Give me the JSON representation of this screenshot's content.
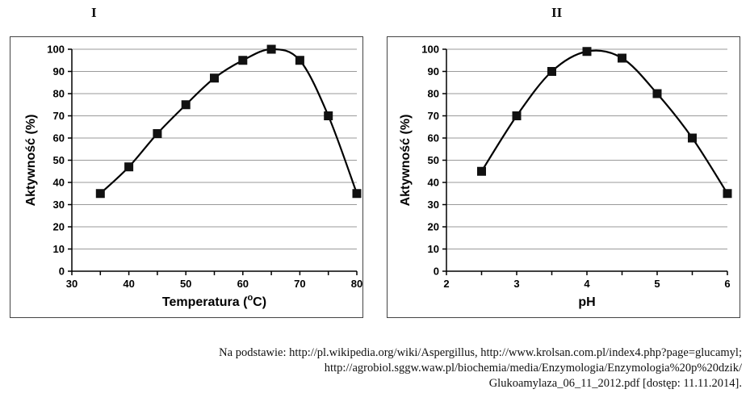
{
  "panels": [
    {
      "label": "I",
      "chart_data": {
        "type": "line",
        "title": "I",
        "xlabel": "Temperatura (",
        "xlabel_superscript": "o",
        "xlabel_unit": "C)",
        "ylabel": "Aktywność  (%)",
        "xlim": [
          30,
          80
        ],
        "ylim": [
          0,
          100
        ],
        "xticks": [
          30,
          40,
          50,
          60,
          70,
          80
        ],
        "yticks": [
          0,
          10,
          20,
          30,
          40,
          50,
          60,
          70,
          80,
          90,
          100
        ],
        "grid": "horizontal",
        "series": [
          {
            "name": "Aktywność",
            "x": [
              35,
              40,
              45,
              50,
              55,
              60,
              65,
              70,
              75,
              80
            ],
            "y": [
              35,
              47,
              62,
              75,
              87,
              95,
              100,
              95,
              70,
              35
            ]
          }
        ]
      }
    },
    {
      "label": "II",
      "chart_data": {
        "type": "line",
        "title": "II",
        "xlabel": "pH",
        "ylabel": "Aktywność  (%)",
        "xlim": [
          2,
          6
        ],
        "ylim": [
          0,
          100
        ],
        "xticks": [
          2,
          3,
          4,
          5,
          6
        ],
        "yticks": [
          0,
          10,
          20,
          30,
          40,
          50,
          60,
          70,
          80,
          90,
          100
        ],
        "grid": "horizontal",
        "series": [
          {
            "name": "Aktywność",
            "x": [
              2.5,
              3,
              3.5,
              4,
              4.5,
              5,
              5.5,
              6
            ],
            "y": [
              45,
              70,
              90,
              99,
              96,
              80,
              60,
              35
            ]
          }
        ]
      }
    }
  ],
  "source": {
    "line1": "Na podstawie: http://pl.wikipedia.org/wiki/Aspergillus, http://www.krolsan.com.pl/index4.php?page=glucamyl;",
    "line2": "http://agrobiol.sggw.waw.pl/biochemia/media/Enzymologia/Enzymologia%20p%20dzik/",
    "line3": "Glukoamylaza_06_11_2012.pdf [dostęp: 11.11.2014]."
  }
}
